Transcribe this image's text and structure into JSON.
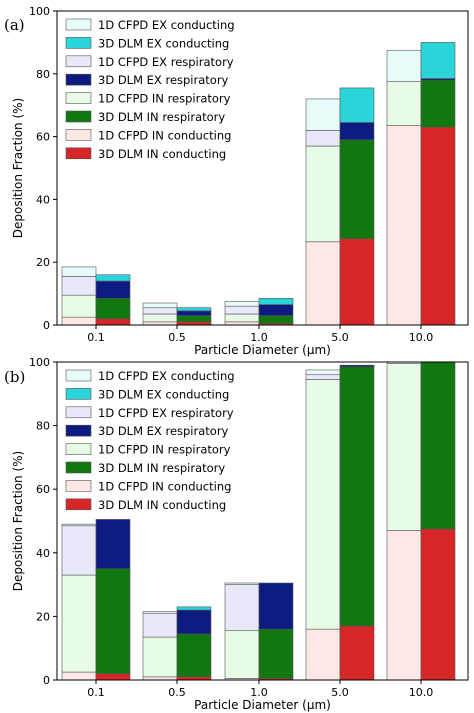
{
  "chart_data": [
    {
      "type": "bar",
      "panel_label": "(a)",
      "xlabel": "Particle Diameter (μm)",
      "ylabel": "Deposition Fraction (%)",
      "ylim": [
        0,
        100
      ],
      "yticks": [
        0,
        20,
        40,
        60,
        80,
        100
      ],
      "categories": [
        "0.1",
        "0.5",
        "1.0",
        "5.0",
        "10.0"
      ],
      "legend_position": "top-left",
      "bar_groups": [
        {
          "name": "1D CFPD",
          "series": [
            {
              "name": "1D CFPD IN conducting",
              "color": "#fde8e6",
              "values": [
                2.5,
                1.0,
                1.0,
                26.5,
                63.5
              ]
            },
            {
              "name": "1D CFPD IN respiratory",
              "color": "#e8fbe6",
              "values": [
                7.0,
                2.5,
                2.5,
                30.5,
                14.0
              ]
            },
            {
              "name": "1D CFPD EX respiratory",
              "color": "#e8e8f8",
              "values": [
                6.0,
                2.0,
                2.5,
                5.0,
                0.0
              ]
            },
            {
              "name": "1D CFPD EX conducting",
              "color": "#e8fbfb",
              "values": [
                3.0,
                1.5,
                1.5,
                10.0,
                10.0
              ]
            }
          ]
        },
        {
          "name": "3D DLM",
          "series": [
            {
              "name": "3D DLM IN conducting",
              "color": "#d62728",
              "values": [
                2.0,
                1.0,
                0.5,
                27.5,
                63.0
              ]
            },
            {
              "name": "3D DLM IN respiratory",
              "color": "#117711",
              "values": [
                6.5,
                2.0,
                2.5,
                31.5,
                15.0
              ]
            },
            {
              "name": "3D DLM EX respiratory",
              "color": "#0d1a80",
              "values": [
                5.5,
                1.5,
                3.5,
                5.5,
                0.5
              ]
            },
            {
              "name": "3D DLM EX conducting",
              "color": "#2ad4d9",
              "values": [
                2.0,
                1.0,
                2.0,
                11.0,
                11.5
              ]
            }
          ]
        }
      ]
    },
    {
      "type": "bar",
      "panel_label": "(b)",
      "xlabel": "Particle Diameter (μm)",
      "ylabel": "Deposition Fraction (%)",
      "ylim": [
        0,
        100
      ],
      "yticks": [
        0,
        20,
        40,
        60,
        80,
        100
      ],
      "categories": [
        "0.1",
        "0.5",
        "1.0",
        "5.0",
        "10.0"
      ],
      "legend_position": "top-left",
      "bar_groups": [
        {
          "name": "1D CFPD",
          "series": [
            {
              "name": "1D CFPD IN conducting",
              "color": "#fde8e6",
              "values": [
                2.5,
                1.0,
                0.5,
                16.0,
                47.0
              ]
            },
            {
              "name": "1D CFPD IN respiratory",
              "color": "#e8fbe6",
              "values": [
                30.5,
                12.5,
                15.0,
                78.5,
                52.5
              ]
            },
            {
              "name": "1D CFPD EX respiratory",
              "color": "#e8e8f8",
              "values": [
                15.5,
                7.5,
                14.5,
                1.5,
                0.0
              ]
            },
            {
              "name": "1D CFPD EX conducting",
              "color": "#e8fbfb",
              "values": [
                0.5,
                0.5,
                0.5,
                1.5,
                0.5
              ]
            }
          ]
        },
        {
          "name": "3D DLM",
          "series": [
            {
              "name": "3D DLM IN conducting",
              "color": "#d62728",
              "values": [
                2.0,
                1.0,
                0.5,
                17.0,
                47.5
              ]
            },
            {
              "name": "3D DLM IN respiratory",
              "color": "#117711",
              "values": [
                33.0,
                13.5,
                15.5,
                81.5,
                52.5
              ]
            },
            {
              "name": "3D DLM EX respiratory",
              "color": "#0d1a80",
              "values": [
                15.5,
                7.5,
                14.5,
                0.5,
                0.0
              ]
            },
            {
              "name": "3D DLM EX conducting",
              "color": "#2ad4d9",
              "values": [
                0.0,
                1.0,
                0.0,
                0.0,
                0.0
              ]
            }
          ]
        }
      ]
    }
  ],
  "legend_order": [
    "1D CFPD EX conducting",
    "3D DLM EX conducting",
    "1D CFPD EX respiratory",
    "3D DLM EX respiratory",
    "1D CFPD IN respiratory",
    "3D DLM IN respiratory",
    "1D CFPD IN conducting",
    "3D DLM IN conducting"
  ]
}
